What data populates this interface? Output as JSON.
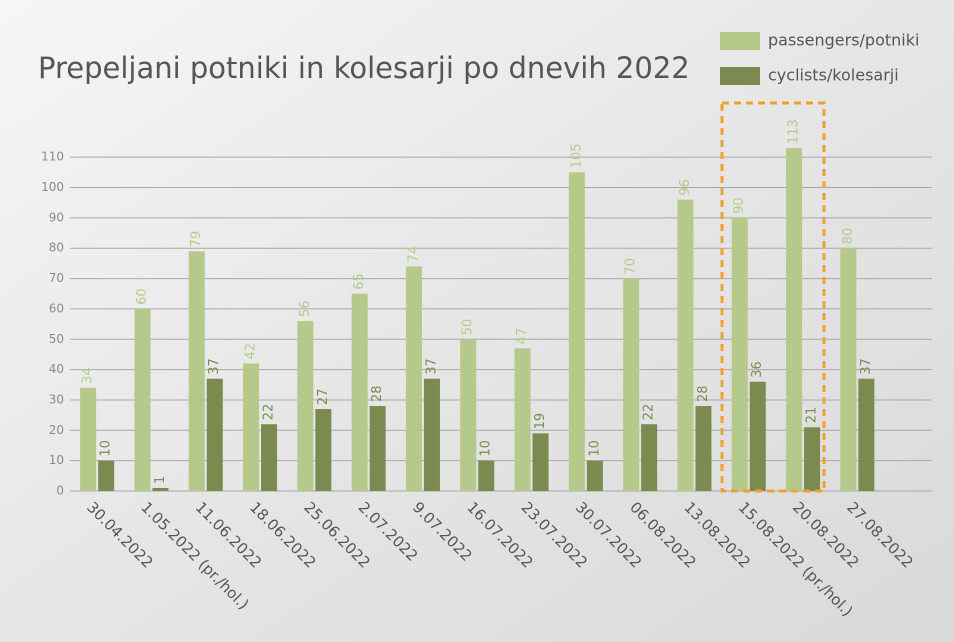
{
  "chart_data": {
    "type": "bar",
    "title": "Prepeljani potniki in kolesarji po dnevih 2022",
    "categories": [
      "30.04.2022",
      "1.05.2022 (pr./hol.)",
      "11.06.2022",
      "18.06.2022",
      "25.06.2022",
      "2.07.2022",
      "9.07.2022",
      "16.07.2022",
      "23.07.2022",
      "30.07.2022",
      "06.08.2022",
      "13.08.2022",
      "15.08.2022 (pr./hol.)",
      "20.08.2022",
      "27.08.2022"
    ],
    "series": [
      {
        "name": "passengers/potniki",
        "color": "#b5c98a",
        "values": [
          34,
          60,
          79,
          42,
          56,
          65,
          74,
          50,
          47,
          105,
          70,
          96,
          90,
          113,
          80
        ]
      },
      {
        "name": "cyclists/kolesarji",
        "color": "#7b8b4f",
        "values": [
          10,
          1,
          37,
          22,
          27,
          28,
          37,
          10,
          19,
          10,
          22,
          28,
          36,
          21,
          37
        ]
      }
    ],
    "ylim": [
      0,
      115
    ],
    "yticks": [
      0,
      10,
      20,
      30,
      40,
      50,
      60,
      70,
      80,
      90,
      100,
      110
    ],
    "grid": true,
    "legend": "top-right"
  }
}
